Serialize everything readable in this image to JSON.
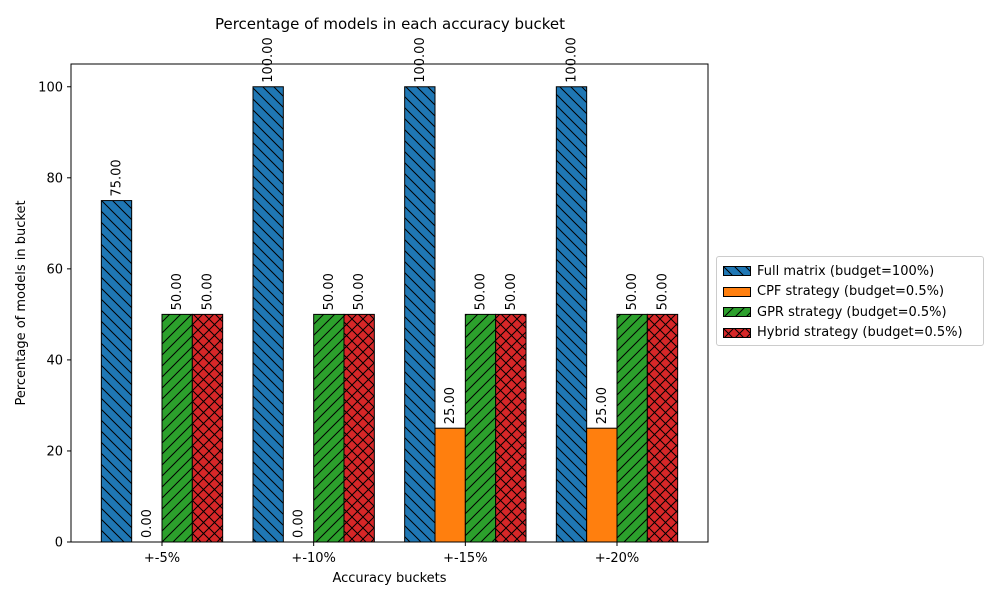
{
  "chart_data": {
    "type": "bar",
    "title": "Percentage of models in each accuracy bucket",
    "xlabel": "Accuracy buckets",
    "ylabel": "Percentage of models in bucket",
    "ylim": [
      0,
      105
    ],
    "yticks": [
      0,
      20,
      40,
      60,
      80,
      100
    ],
    "categories": [
      "+-5%",
      "+-10%",
      "+-15%",
      "+-20%"
    ],
    "grid": false,
    "legend_position": "right",
    "series": [
      {
        "name": "Full matrix (budget=100%)",
        "values": [
          75,
          100,
          100,
          100
        ],
        "labels": [
          "75.00",
          "100.00",
          "100.00",
          "100.00"
        ],
        "color": "#1f77b4",
        "hatch": "backslash"
      },
      {
        "name": "CPF strategy (budget=0.5%)",
        "values": [
          0,
          0,
          25,
          25
        ],
        "labels": [
          "0.00",
          "0.00",
          "25.00",
          "25.00"
        ],
        "color": "#ff7f0e",
        "hatch": "none"
      },
      {
        "name": "GPR strategy (budget=0.5%)",
        "values": [
          50,
          50,
          50,
          50
        ],
        "labels": [
          "50.00",
          "50.00",
          "50.00",
          "50.00"
        ],
        "color": "#2ca02c",
        "hatch": "slash"
      },
      {
        "name": "Hybrid strategy (budget=0.5%)",
        "values": [
          50,
          50,
          50,
          50
        ],
        "labels": [
          "50.00",
          "50.00",
          "50.00",
          "50.00"
        ],
        "color": "#d62728",
        "hatch": "cross"
      }
    ]
  }
}
